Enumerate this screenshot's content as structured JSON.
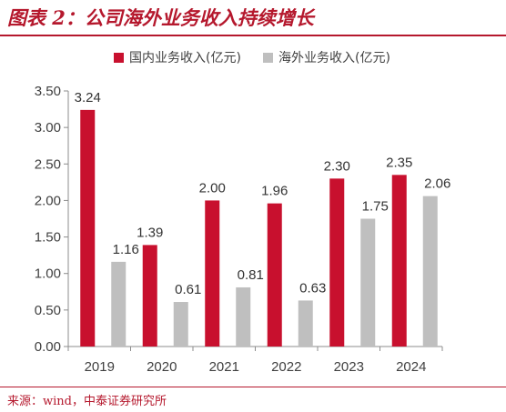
{
  "header": {
    "title": "图表 2：公司海外业务收入持续增长"
  },
  "footer": {
    "source": "来源：wind，中泰证券研究所"
  },
  "colors": {
    "domestic": "#c8102e",
    "overseas": "#bfbfbf",
    "accent": "#b5182d"
  },
  "chart_data": {
    "type": "bar",
    "categories": [
      "2019",
      "2020",
      "2021",
      "2022",
      "2023",
      "2024"
    ],
    "series": [
      {
        "name": "国内业务收入(亿元)",
        "values": [
          3.24,
          1.39,
          2.0,
          1.96,
          2.3,
          2.35
        ],
        "labels": [
          "3.24",
          "1.39",
          "2.00",
          "1.96",
          "2.30",
          "2.35"
        ]
      },
      {
        "name": "海外业务收入(亿元)",
        "values": [
          1.16,
          0.61,
          0.81,
          0.63,
          1.75,
          2.06
        ],
        "labels": [
          "1.16",
          "0.61",
          "0.81",
          "0.63",
          "1.75",
          "2.06"
        ]
      }
    ],
    "yticks": [
      "0.00",
      "0.50",
      "1.00",
      "1.50",
      "2.00",
      "2.50",
      "3.00",
      "3.50"
    ],
    "ylim": [
      0,
      3.5
    ],
    "legend": "top",
    "grid": false
  }
}
